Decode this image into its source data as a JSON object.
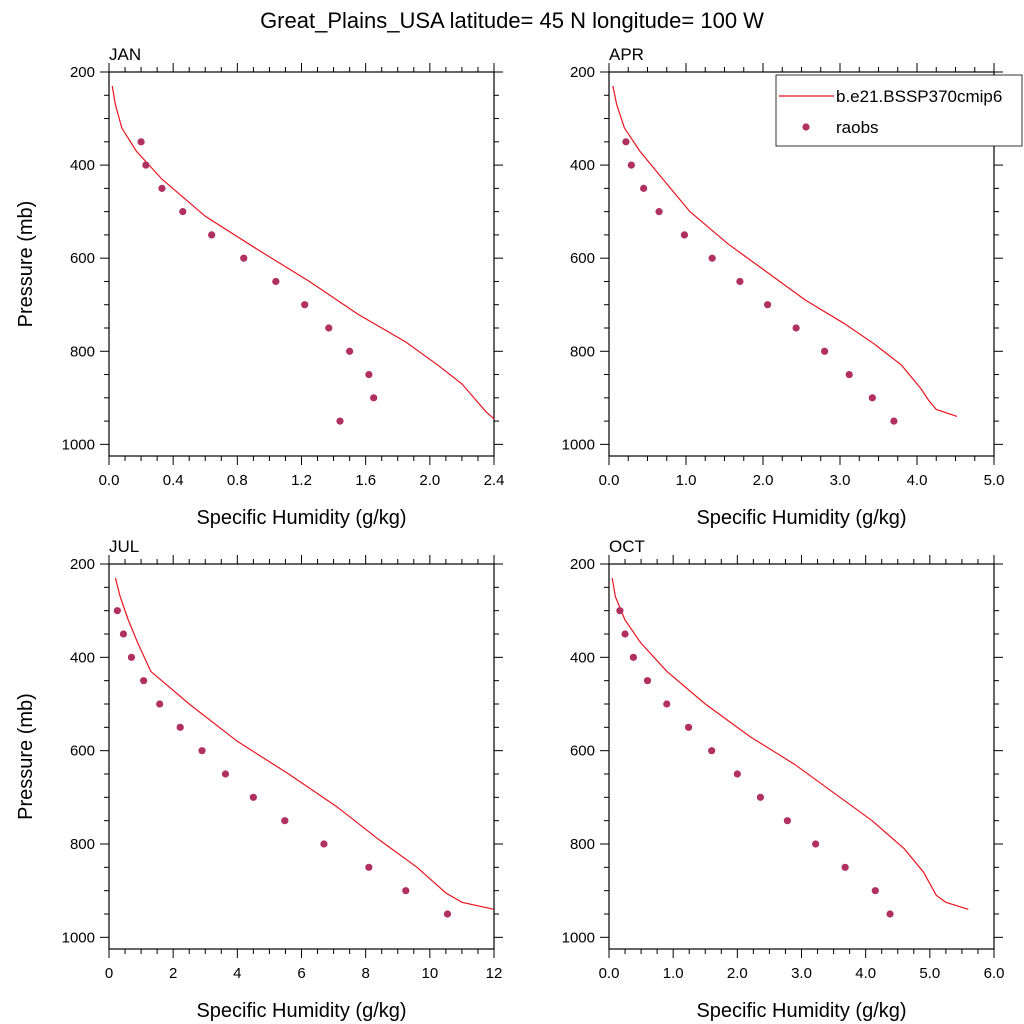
{
  "title": "Great_Plains_USA  latitude= 45 N longitude= 100 W",
  "legend": {
    "placement": "top-right",
    "entries": [
      {
        "label": "b.e21.BSSP370cmip6",
        "style": "line",
        "color": "#e8141e"
      },
      {
        "label": "raobs",
        "style": "marker",
        "color": "#b03060"
      }
    ]
  },
  "colors": {
    "model": "#e8141e",
    "obs": "#b03060"
  },
  "chart_data": [
    {
      "type": "line",
      "panel": "JAN",
      "xlabel": "Specific Humidity (g/kg)",
      "ylabel": "Pressure (mb)",
      "xlim": [
        0,
        2.4
      ],
      "ylim": [
        1025,
        200
      ],
      "y_reversed": true,
      "xticks": [
        0,
        0.4,
        0.8,
        1.2,
        1.6,
        2.0,
        2.4
      ],
      "xtick_labels": [
        "0.0",
        "0.4",
        "0.8",
        "1.2",
        "1.6",
        "2.0",
        "2.4"
      ],
      "xminor": 0.1,
      "yticks": [
        200,
        400,
        600,
        800,
        1000
      ],
      "yminor": 50,
      "series": [
        {
          "name": "b.e21.BSSP370cmip6",
          "kind": "line",
          "x": [
            0.02,
            0.04,
            0.08,
            0.17,
            0.33,
            0.6,
            0.92,
            1.25,
            1.55,
            1.85,
            2.05,
            2.2,
            2.3,
            2.35,
            2.4
          ],
          "y": [
            230,
            270,
            320,
            370,
            430,
            510,
            580,
            650,
            720,
            780,
            830,
            870,
            910,
            930,
            945
          ]
        },
        {
          "name": "raobs",
          "kind": "scatter",
          "x": [
            0.2,
            0.23,
            0.33,
            0.46,
            0.64,
            0.84,
            1.04,
            1.22,
            1.37,
            1.5,
            1.62,
            1.65,
            1.44
          ],
          "y": [
            350,
            400,
            450,
            500,
            550,
            600,
            650,
            700,
            750,
            800,
            850,
            900,
            950
          ]
        }
      ]
    },
    {
      "type": "line",
      "panel": "APR",
      "xlabel": "Specific Humidity (g/kg)",
      "ylabel": "",
      "xlim": [
        0,
        5
      ],
      "ylim": [
        1025,
        200
      ],
      "y_reversed": true,
      "xticks": [
        0,
        1,
        2,
        3,
        4,
        5
      ],
      "xtick_labels": [
        "0.0",
        "1.0",
        "2.0",
        "3.0",
        "4.0",
        "5.0"
      ],
      "xminor": 0.25,
      "yticks": [
        200,
        400,
        600,
        800,
        1000
      ],
      "yminor": 50,
      "series": [
        {
          "name": "b.e21.BSSP370cmip6",
          "kind": "line",
          "x": [
            0.05,
            0.1,
            0.2,
            0.4,
            0.7,
            1.05,
            1.55,
            2.05,
            2.55,
            3.05,
            3.45,
            3.8,
            4.05,
            4.15,
            4.25,
            4.52
          ],
          "y": [
            230,
            270,
            320,
            370,
            430,
            500,
            570,
            630,
            690,
            740,
            785,
            830,
            880,
            905,
            925,
            940
          ]
        },
        {
          "name": "raobs",
          "kind": "scatter",
          "x": [
            0.22,
            0.29,
            0.45,
            0.65,
            0.98,
            1.34,
            1.7,
            2.06,
            2.43,
            2.8,
            3.12,
            3.42,
            3.7
          ],
          "y": [
            350,
            400,
            450,
            500,
            550,
            600,
            650,
            700,
            750,
            800,
            850,
            900,
            950
          ]
        }
      ]
    },
    {
      "type": "line",
      "panel": "JUL",
      "xlabel": "Specific Humidity (g/kg)",
      "ylabel": "Pressure (mb)",
      "xlim": [
        0,
        12
      ],
      "ylim": [
        1025,
        200
      ],
      "y_reversed": true,
      "xticks": [
        0,
        2,
        4,
        6,
        8,
        10,
        12
      ],
      "xtick_labels": [
        "0",
        "2",
        "4",
        "6",
        "8",
        "10",
        "12"
      ],
      "xminor": 0.5,
      "yticks": [
        200,
        400,
        600,
        800,
        1000
      ],
      "yminor": 50,
      "series": [
        {
          "name": "b.e21.BSSP370cmip6",
          "kind": "line",
          "x": [
            0.2,
            0.35,
            0.6,
            0.9,
            1.3,
            2.5,
            4.0,
            5.6,
            7.1,
            8.4,
            9.6,
            10.5,
            11.0,
            12.0
          ],
          "y": [
            230,
            270,
            320,
            370,
            430,
            500,
            580,
            650,
            720,
            790,
            850,
            905,
            925,
            940
          ]
        },
        {
          "name": "raobs",
          "kind": "scatter",
          "x": [
            0.26,
            0.45,
            0.7,
            1.08,
            1.58,
            2.22,
            2.9,
            3.63,
            4.5,
            5.48,
            6.7,
            8.1,
            9.25,
            10.55
          ],
          "y": [
            300,
            350,
            400,
            450,
            500,
            550,
            600,
            650,
            700,
            750,
            800,
            850,
            900,
            950
          ]
        }
      ]
    },
    {
      "type": "line",
      "panel": "OCT",
      "xlabel": "Specific Humidity (g/kg)",
      "ylabel": "",
      "xlim": [
        0,
        6
      ],
      "ylim": [
        1025,
        200
      ],
      "y_reversed": true,
      "xticks": [
        0,
        1,
        2,
        3,
        4,
        5,
        6
      ],
      "xtick_labels": [
        "0.0",
        "1.0",
        "2.0",
        "3.0",
        "4.0",
        "5.0",
        "6.0"
      ],
      "xminor": 0.25,
      "yticks": [
        200,
        400,
        600,
        800,
        1000
      ],
      "yminor": 50,
      "series": [
        {
          "name": "b.e21.BSSP370cmip6",
          "kind": "line",
          "x": [
            0.05,
            0.1,
            0.25,
            0.5,
            0.9,
            1.5,
            2.2,
            2.9,
            3.5,
            4.1,
            4.6,
            4.9,
            5.1,
            5.25,
            5.6
          ],
          "y": [
            230,
            270,
            320,
            370,
            430,
            500,
            570,
            630,
            690,
            750,
            810,
            860,
            910,
            925,
            940
          ]
        },
        {
          "name": "raobs",
          "kind": "scatter",
          "x": [
            0.17,
            0.25,
            0.38,
            0.6,
            0.9,
            1.24,
            1.6,
            2.0,
            2.36,
            2.78,
            3.22,
            3.68,
            4.15,
            4.38
          ],
          "y": [
            300,
            350,
            400,
            450,
            500,
            550,
            600,
            650,
            700,
            750,
            800,
            850,
            900,
            950
          ]
        }
      ]
    }
  ]
}
